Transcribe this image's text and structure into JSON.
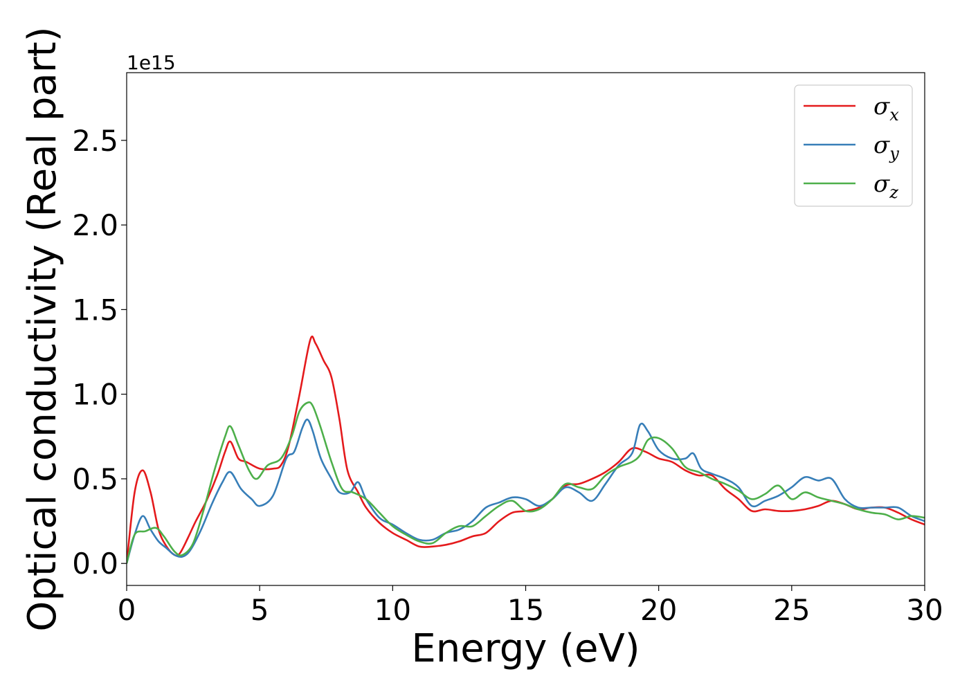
{
  "chart_data": {
    "type": "line",
    "xlabel": "Energy (eV)",
    "ylabel": "Optical conductivity (Real part)",
    "y_offset_label": "1e15",
    "xlim": [
      0,
      30
    ],
    "ylim": [
      -0.13,
      2.9
    ],
    "x_ticks": [
      0,
      5,
      10,
      15,
      20,
      25,
      30
    ],
    "x_tick_labels": [
      "0",
      "5",
      "10",
      "15",
      "20",
      "25",
      "30"
    ],
    "y_ticks": [
      0.0,
      0.5,
      1.0,
      1.5,
      2.0,
      2.5
    ],
    "y_tick_labels": [
      "0.0",
      "0.5",
      "1.0",
      "1.5",
      "2.0",
      "2.5"
    ],
    "grid": false,
    "legend_position": "top-right",
    "series": [
      {
        "name": "σx",
        "legend_main": "σ",
        "legend_sub": "x",
        "color": "#e41a1c",
        "x": [
          0,
          0.3,
          0.6,
          0.9,
          1.2,
          1.5,
          1.8,
          2.0,
          2.3,
          2.6,
          3.0,
          3.4,
          3.7,
          3.9,
          4.2,
          4.5,
          5.0,
          5.5,
          5.8,
          6.1,
          6.5,
          6.9,
          7.1,
          7.4,
          7.7,
          8.0,
          8.3,
          8.7,
          9.0,
          9.5,
          10.0,
          10.5,
          11.0,
          11.5,
          12.0,
          12.5,
          13.0,
          13.5,
          14.0,
          14.5,
          15.0,
          15.5,
          16.0,
          16.5,
          17.0,
          17.5,
          18.0,
          18.5,
          19.0,
          19.5,
          20.0,
          20.5,
          21.0,
          21.5,
          22.0,
          22.5,
          23.0,
          23.5,
          24.0,
          24.5,
          25.0,
          25.5,
          26.0,
          26.5,
          27.0,
          27.5,
          28.0,
          28.5,
          29.0,
          29.5,
          30.0
        ],
        "y": [
          0.0,
          0.42,
          0.55,
          0.42,
          0.2,
          0.1,
          0.05,
          0.06,
          0.15,
          0.25,
          0.37,
          0.52,
          0.66,
          0.72,
          0.62,
          0.6,
          0.56,
          0.56,
          0.58,
          0.7,
          1.0,
          1.32,
          1.3,
          1.2,
          1.1,
          0.85,
          0.55,
          0.42,
          0.33,
          0.24,
          0.18,
          0.14,
          0.1,
          0.1,
          0.11,
          0.13,
          0.16,
          0.18,
          0.25,
          0.3,
          0.31,
          0.33,
          0.38,
          0.46,
          0.47,
          0.5,
          0.54,
          0.6,
          0.68,
          0.66,
          0.62,
          0.6,
          0.55,
          0.52,
          0.52,
          0.44,
          0.38,
          0.31,
          0.32,
          0.31,
          0.31,
          0.32,
          0.34,
          0.37,
          0.35,
          0.32,
          0.33,
          0.33,
          0.3,
          0.26,
          0.23
        ]
      },
      {
        "name": "σy",
        "legend_main": "σ",
        "legend_sub": "y",
        "color": "#377eb8",
        "x": [
          0,
          0.3,
          0.6,
          0.9,
          1.2,
          1.5,
          1.8,
          2.1,
          2.4,
          2.8,
          3.2,
          3.6,
          3.9,
          4.3,
          4.7,
          5.0,
          5.5,
          6.0,
          6.3,
          6.6,
          6.8,
          7.0,
          7.3,
          7.7,
          8.0,
          8.4,
          8.7,
          9.0,
          9.5,
          10.0,
          10.5,
          11.0,
          11.5,
          12.0,
          12.5,
          13.0,
          13.5,
          14.0,
          14.5,
          15.0,
          15.5,
          16.0,
          16.5,
          17.0,
          17.5,
          18.0,
          18.5,
          19.0,
          19.3,
          19.6,
          20.0,
          20.5,
          21.0,
          21.3,
          21.6,
          22.0,
          22.5,
          23.0,
          23.5,
          24.0,
          24.5,
          25.0,
          25.5,
          26.0,
          26.5,
          27.0,
          27.5,
          28.0,
          28.5,
          29.0,
          29.5,
          30.0
        ],
        "y": [
          0.0,
          0.17,
          0.28,
          0.2,
          0.13,
          0.09,
          0.05,
          0.04,
          0.08,
          0.2,
          0.35,
          0.48,
          0.54,
          0.44,
          0.38,
          0.34,
          0.4,
          0.62,
          0.66,
          0.8,
          0.85,
          0.78,
          0.62,
          0.5,
          0.42,
          0.42,
          0.48,
          0.38,
          0.27,
          0.23,
          0.18,
          0.14,
          0.14,
          0.18,
          0.2,
          0.25,
          0.33,
          0.36,
          0.39,
          0.38,
          0.34,
          0.38,
          0.45,
          0.42,
          0.37,
          0.47,
          0.58,
          0.65,
          0.82,
          0.78,
          0.67,
          0.62,
          0.62,
          0.65,
          0.56,
          0.53,
          0.5,
          0.45,
          0.34,
          0.37,
          0.4,
          0.45,
          0.51,
          0.49,
          0.5,
          0.38,
          0.33,
          0.33,
          0.33,
          0.33,
          0.28,
          0.25
        ]
      },
      {
        "name": "σz",
        "legend_main": "σ",
        "legend_sub": "z",
        "color": "#4daf4a",
        "x": [
          0,
          0.3,
          0.7,
          1.1,
          1.4,
          1.8,
          2.1,
          2.5,
          2.9,
          3.3,
          3.7,
          3.9,
          4.2,
          4.6,
          4.9,
          5.3,
          5.8,
          6.2,
          6.5,
          6.8,
          7.0,
          7.3,
          7.7,
          8.1,
          8.5,
          9.0,
          9.5,
          10.0,
          10.5,
          11.0,
          11.5,
          12.0,
          12.5,
          13.0,
          13.5,
          14.0,
          14.5,
          15.0,
          15.5,
          16.0,
          16.5,
          17.0,
          17.5,
          18.0,
          18.5,
          19.0,
          19.3,
          19.6,
          20.0,
          20.5,
          21.0,
          21.5,
          22.0,
          22.5,
          23.0,
          23.5,
          24.0,
          24.5,
          25.0,
          25.5,
          26.0,
          26.5,
          27.0,
          27.5,
          28.0,
          28.5,
          29.0,
          29.5,
          30.0
        ],
        "y": [
          0.0,
          0.17,
          0.19,
          0.21,
          0.16,
          0.07,
          0.05,
          0.12,
          0.32,
          0.55,
          0.75,
          0.81,
          0.7,
          0.55,
          0.5,
          0.58,
          0.62,
          0.75,
          0.9,
          0.95,
          0.93,
          0.8,
          0.6,
          0.44,
          0.42,
          0.38,
          0.3,
          0.22,
          0.17,
          0.13,
          0.12,
          0.18,
          0.22,
          0.22,
          0.28,
          0.34,
          0.37,
          0.31,
          0.32,
          0.38,
          0.47,
          0.45,
          0.44,
          0.52,
          0.57,
          0.6,
          0.64,
          0.73,
          0.74,
          0.68,
          0.57,
          0.54,
          0.5,
          0.47,
          0.43,
          0.38,
          0.41,
          0.46,
          0.38,
          0.42,
          0.39,
          0.37,
          0.35,
          0.32,
          0.3,
          0.29,
          0.26,
          0.28,
          0.27
        ]
      }
    ]
  }
}
